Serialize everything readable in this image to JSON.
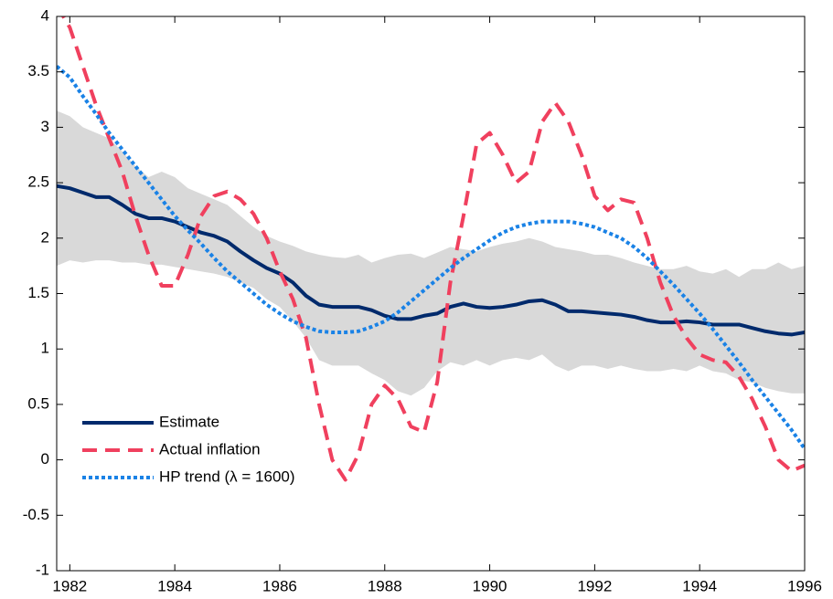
{
  "chart_data": {
    "type": "line",
    "x": [
      1981.75,
      1982,
      1982.25,
      1982.5,
      1982.75,
      1983,
      1983.25,
      1983.5,
      1983.75,
      1984,
      1984.25,
      1984.5,
      1984.75,
      1985,
      1985.25,
      1985.5,
      1985.75,
      1986,
      1986.25,
      1986.5,
      1986.75,
      1987,
      1987.25,
      1987.5,
      1987.75,
      1988,
      1988.25,
      1988.5,
      1988.75,
      1989,
      1989.25,
      1989.5,
      1989.75,
      1990,
      1990.25,
      1990.5,
      1990.75,
      1991,
      1991.25,
      1991.5,
      1991.75,
      1992,
      1992.25,
      1992.5,
      1992.75,
      1993,
      1993.25,
      1993.5,
      1993.75,
      1994,
      1994.25,
      1994.5,
      1994.75,
      1995,
      1995.25,
      1995.5,
      1995.75,
      1996
    ],
    "band": {
      "color": "#d9d9d9",
      "upper": [
        3.15,
        3.1,
        3.0,
        2.95,
        2.9,
        2.78,
        2.65,
        2.55,
        2.6,
        2.55,
        2.45,
        2.4,
        2.35,
        2.3,
        2.2,
        2.1,
        2.02,
        1.97,
        1.93,
        1.88,
        1.85,
        1.83,
        1.82,
        1.85,
        1.78,
        1.82,
        1.85,
        1.86,
        1.82,
        1.87,
        1.92,
        1.9,
        1.88,
        1.92,
        1.95,
        1.97,
        2.0,
        1.97,
        1.92,
        1.9,
        1.88,
        1.85,
        1.85,
        1.82,
        1.78,
        1.75,
        1.72,
        1.72,
        1.75,
        1.7,
        1.68,
        1.72,
        1.65,
        1.72,
        1.72,
        1.78,
        1.72,
        1.75
      ],
      "lower": [
        1.75,
        1.8,
        1.78,
        1.8,
        1.8,
        1.78,
        1.78,
        1.76,
        1.76,
        1.74,
        1.72,
        1.7,
        1.68,
        1.65,
        1.6,
        1.55,
        1.45,
        1.38,
        1.25,
        1.1,
        0.9,
        0.85,
        0.85,
        0.85,
        0.78,
        0.72,
        0.62,
        0.58,
        0.65,
        0.8,
        0.88,
        0.85,
        0.9,
        0.85,
        0.9,
        0.92,
        0.9,
        0.95,
        0.85,
        0.8,
        0.85,
        0.85,
        0.82,
        0.85,
        0.82,
        0.8,
        0.8,
        0.82,
        0.8,
        0.85,
        0.8,
        0.78,
        0.72,
        0.7,
        0.65,
        0.62,
        0.6,
        0.6
      ]
    },
    "series": [
      {
        "name": "Estimate",
        "color": "#002a6c",
        "style": "solid",
        "values": [
          2.47,
          2.45,
          2.41,
          2.37,
          2.37,
          2.3,
          2.22,
          2.18,
          2.18,
          2.15,
          2.1,
          2.05,
          2.02,
          1.97,
          1.88,
          1.8,
          1.73,
          1.68,
          1.6,
          1.48,
          1.4,
          1.38,
          1.38,
          1.38,
          1.35,
          1.3,
          1.27,
          1.27,
          1.3,
          1.32,
          1.38,
          1.41,
          1.38,
          1.37,
          1.38,
          1.4,
          1.43,
          1.44,
          1.4,
          1.34,
          1.34,
          1.33,
          1.32,
          1.31,
          1.29,
          1.26,
          1.24,
          1.24,
          1.25,
          1.24,
          1.22,
          1.22,
          1.22,
          1.19,
          1.16,
          1.14,
          1.13,
          1.15
        ]
      },
      {
        "name": "Actual inflation",
        "color": "#f0405e",
        "style": "dashed",
        "values": [
          4.1,
          3.9,
          3.55,
          3.2,
          2.9,
          2.6,
          2.2,
          1.85,
          1.57,
          1.57,
          1.85,
          2.2,
          2.38,
          2.42,
          2.35,
          2.22,
          2.0,
          1.7,
          1.45,
          1.1,
          0.5,
          0.0,
          -0.18,
          0.05,
          0.5,
          0.67,
          0.55,
          0.3,
          0.25,
          0.7,
          1.6,
          2.2,
          2.85,
          2.95,
          2.75,
          2.5,
          2.6,
          3.05,
          3.22,
          3.05,
          2.75,
          2.38,
          2.25,
          2.35,
          2.32,
          2.0,
          1.6,
          1.3,
          1.1,
          0.95,
          0.9,
          0.88,
          0.75,
          0.55,
          0.3,
          0.0,
          -0.1,
          -0.05
        ]
      },
      {
        "name": "HP trend (λ = 1600)",
        "color": "#1a82e6",
        "style": "dotted",
        "values": [
          3.55,
          3.45,
          3.28,
          3.12,
          2.95,
          2.8,
          2.65,
          2.5,
          2.35,
          2.2,
          2.07,
          1.95,
          1.82,
          1.7,
          1.6,
          1.5,
          1.4,
          1.32,
          1.25,
          1.2,
          1.16,
          1.15,
          1.15,
          1.16,
          1.2,
          1.25,
          1.33,
          1.43,
          1.53,
          1.63,
          1.73,
          1.82,
          1.9,
          1.98,
          2.05,
          2.1,
          2.13,
          2.15,
          2.15,
          2.15,
          2.13,
          2.1,
          2.05,
          2.0,
          1.92,
          1.82,
          1.7,
          1.58,
          1.45,
          1.32,
          1.18,
          1.03,
          0.88,
          0.72,
          0.57,
          0.42,
          0.27,
          0.1
        ]
      }
    ],
    "xlim": [
      1981.75,
      1996
    ],
    "ylim": [
      -1,
      4
    ],
    "xticks": [
      1982,
      1984,
      1986,
      1988,
      1990,
      1992,
      1994,
      1996
    ],
    "yticks": [
      -1,
      -0.5,
      0,
      0.5,
      1,
      1.5,
      2,
      2.5,
      3,
      3.5,
      4
    ],
    "legend": "lower left",
    "grid": false
  }
}
